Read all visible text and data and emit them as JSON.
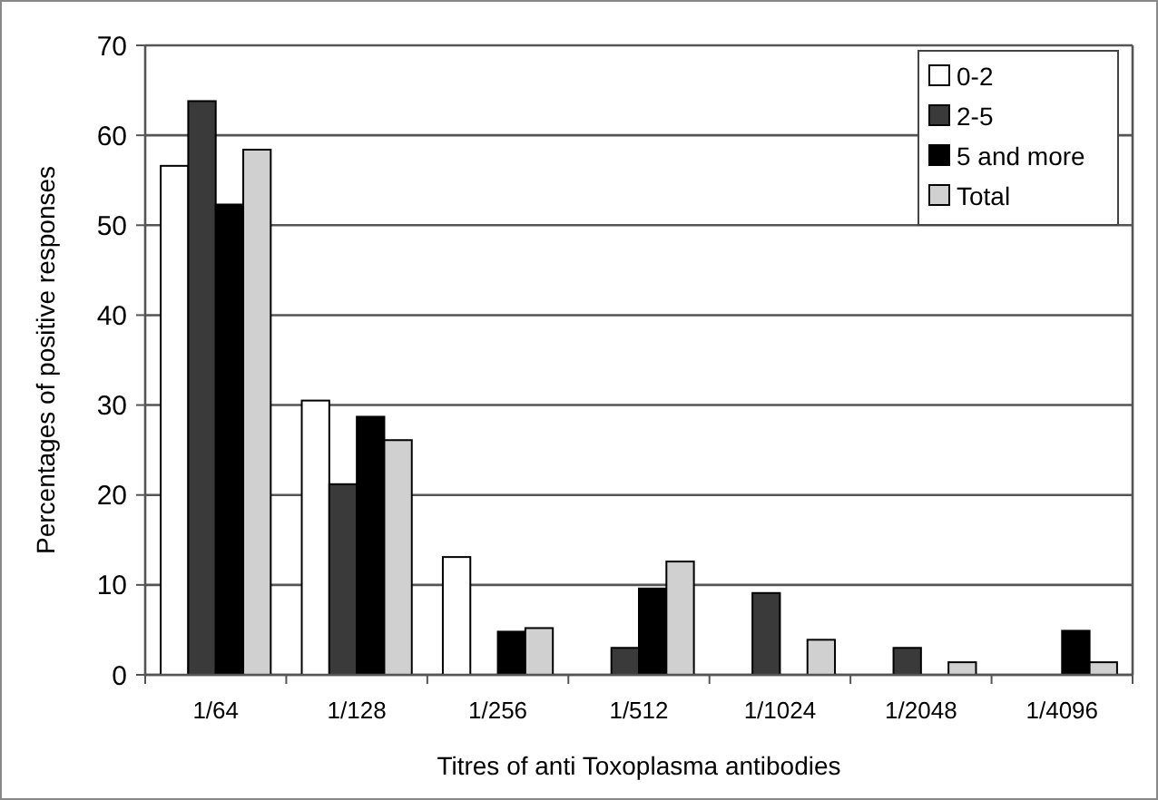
{
  "chart_data": {
    "type": "bar",
    "xlabel": "Titres of anti Toxoplasma antibodies",
    "ylabel": "Percentages of positive responses",
    "categories": [
      "1/64",
      "1/128",
      "1/256",
      "1/512",
      "1/1024",
      "1/2048",
      "1/4096"
    ],
    "series": [
      {
        "name": "0-2",
        "color": "#ffffff",
        "values": [
          56.6,
          30.5,
          13.1,
          0,
          0,
          0,
          0
        ]
      },
      {
        "name": "2-5",
        "color": "#3a3a3a",
        "values": [
          63.8,
          21.2,
          0,
          3,
          9.1,
          3,
          0
        ]
      },
      {
        "name": "5 and more",
        "color": "#000000",
        "values": [
          52.3,
          28.7,
          4.8,
          9.6,
          0,
          0,
          4.9
        ]
      },
      {
        "name": "Total",
        "color": "#d0d0d0",
        "values": [
          58.4,
          26.1,
          5.2,
          12.6,
          3.9,
          1.4,
          1.4
        ]
      }
    ],
    "ylim": [
      0,
      70
    ],
    "yticks": [
      0,
      10,
      20,
      30,
      40,
      50,
      60,
      70
    ],
    "grid": "y",
    "legend": "top right"
  }
}
